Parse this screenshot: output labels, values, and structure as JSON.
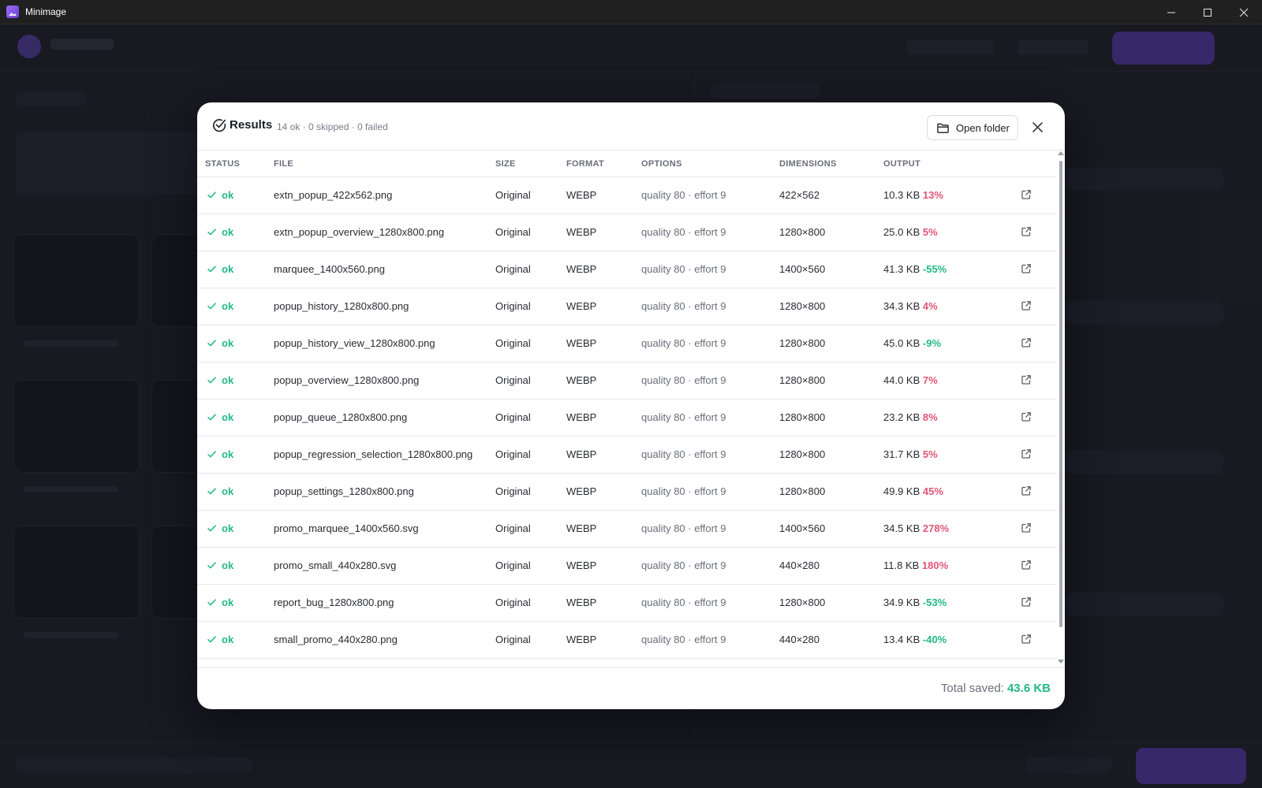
{
  "window": {
    "title": "Minimage"
  },
  "results": {
    "title": "Results",
    "summary": "14 ok · 0 skipped · 0 failed",
    "open_folder_label": "Open folder",
    "columns": [
      "STATUS",
      "FILE",
      "SIZE",
      "FORMAT",
      "OPTIONS",
      "DIMENSIONS",
      "OUTPUT"
    ],
    "rows": [
      {
        "status": "ok",
        "file": "extn_popup_422x562.png",
        "size": "Original",
        "format": "WEBP",
        "options": "quality 80 · effort 9",
        "dimensions": "422×562",
        "output_size": "10.3 KB",
        "output_pct": "13%",
        "trend": "bad"
      },
      {
        "status": "ok",
        "file": "extn_popup_overview_1280x800.png",
        "size": "Original",
        "format": "WEBP",
        "options": "quality 80 · effort 9",
        "dimensions": "1280×800",
        "output_size": "25.0 KB",
        "output_pct": "5%",
        "trend": "bad"
      },
      {
        "status": "ok",
        "file": "marquee_1400x560.png",
        "size": "Original",
        "format": "WEBP",
        "options": "quality 80 · effort 9",
        "dimensions": "1400×560",
        "output_size": "41.3 KB",
        "output_pct": "-55%",
        "trend": "good"
      },
      {
        "status": "ok",
        "file": "popup_history_1280x800.png",
        "size": "Original",
        "format": "WEBP",
        "options": "quality 80 · effort 9",
        "dimensions": "1280×800",
        "output_size": "34.3 KB",
        "output_pct": "4%",
        "trend": "bad"
      },
      {
        "status": "ok",
        "file": "popup_history_view_1280x800.png",
        "size": "Original",
        "format": "WEBP",
        "options": "quality 80 · effort 9",
        "dimensions": "1280×800",
        "output_size": "45.0 KB",
        "output_pct": "-9%",
        "trend": "good"
      },
      {
        "status": "ok",
        "file": "popup_overview_1280x800.png",
        "size": "Original",
        "format": "WEBP",
        "options": "quality 80 · effort 9",
        "dimensions": "1280×800",
        "output_size": "44.0 KB",
        "output_pct": "7%",
        "trend": "bad"
      },
      {
        "status": "ok",
        "file": "popup_queue_1280x800.png",
        "size": "Original",
        "format": "WEBP",
        "options": "quality 80 · effort 9",
        "dimensions": "1280×800",
        "output_size": "23.2 KB",
        "output_pct": "8%",
        "trend": "bad"
      },
      {
        "status": "ok",
        "file": "popup_regression_selection_1280x800.png",
        "size": "Original",
        "format": "WEBP",
        "options": "quality 80 · effort 9",
        "dimensions": "1280×800",
        "output_size": "31.7 KB",
        "output_pct": "5%",
        "trend": "bad"
      },
      {
        "status": "ok",
        "file": "popup_settings_1280x800.png",
        "size": "Original",
        "format": "WEBP",
        "options": "quality 80 · effort 9",
        "dimensions": "1280×800",
        "output_size": "49.9 KB",
        "output_pct": "45%",
        "trend": "bad"
      },
      {
        "status": "ok",
        "file": "promo_marquee_1400x560.svg",
        "size": "Original",
        "format": "WEBP",
        "options": "quality 80 · effort 9",
        "dimensions": "1400×560",
        "output_size": "34.5 KB",
        "output_pct": "278%",
        "trend": "bad"
      },
      {
        "status": "ok",
        "file": "promo_small_440x280.svg",
        "size": "Original",
        "format": "WEBP",
        "options": "quality 80 · effort 9",
        "dimensions": "440×280",
        "output_size": "11.8 KB",
        "output_pct": "180%",
        "trend": "bad"
      },
      {
        "status": "ok",
        "file": "report_bug_1280x800.png",
        "size": "Original",
        "format": "WEBP",
        "options": "quality 80 · effort 9",
        "dimensions": "1280×800",
        "output_size": "34.9 KB",
        "output_pct": "-53%",
        "trend": "good"
      },
      {
        "status": "ok",
        "file": "small_promo_440x280.png",
        "size": "Original",
        "format": "WEBP",
        "options": "quality 80 · effort 9",
        "dimensions": "440×280",
        "output_size": "13.4 KB",
        "output_pct": "-40%",
        "trend": "good"
      }
    ],
    "total_label": "Total saved:",
    "total_value": "43.6 KB"
  },
  "colors": {
    "accent": "#6a43e0",
    "good": "#22b887",
    "bad": "#e05574"
  },
  "icons": {
    "title": "check-circle-icon",
    "open_folder": "folder-icon",
    "close": "close-icon",
    "status": "check-icon",
    "row_action": "external-link-icon"
  }
}
